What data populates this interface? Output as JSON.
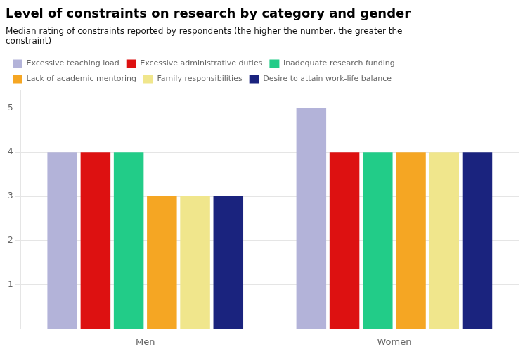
{
  "chart_data": {
    "type": "bar",
    "title": "Level of constraints on research by category and gender",
    "subtitle": "Median rating of constraints reported by respondents (the higher the number, the greater the\nconstraint)",
    "categories": [
      "Men",
      "Women"
    ],
    "series": [
      {
        "name": "Excessive teaching load",
        "values": [
          4,
          5
        ],
        "color": "#b3b3d9"
      },
      {
        "name": "Excessive administrative duties",
        "values": [
          4,
          4
        ],
        "color": "#dd1111"
      },
      {
        "name": "Inadequate research funding",
        "values": [
          4,
          4
        ],
        "color": "#22cc88"
      },
      {
        "name": "Lack of academic mentoring",
        "values": [
          3,
          4
        ],
        "color": "#f5a623"
      },
      {
        "name": "Family responsibilities",
        "values": [
          3,
          4
        ],
        "color": "#f0e68c"
      },
      {
        "name": "Desire to attain work-life balance",
        "values": [
          3,
          4
        ],
        "color": "#1a237e"
      }
    ],
    "ylim": [
      0,
      5.4
    ],
    "yticks": [
      1,
      2,
      3,
      4,
      5
    ],
    "grid": true,
    "legend": "top"
  }
}
